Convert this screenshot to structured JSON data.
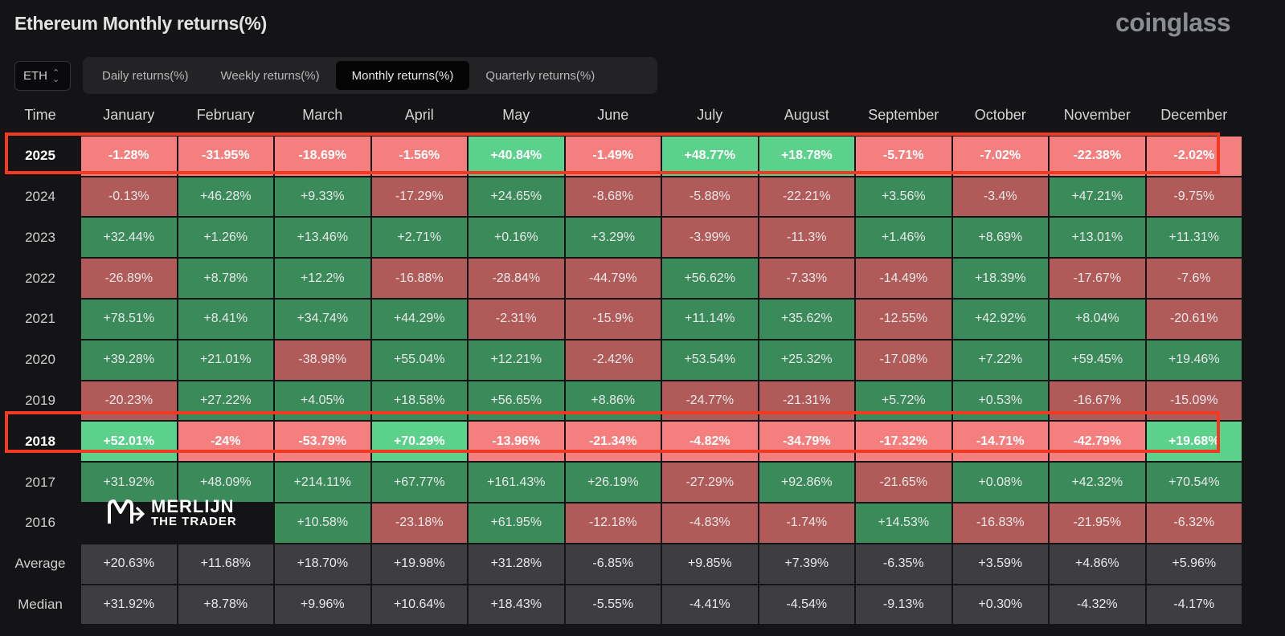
{
  "header": {
    "title": "Ethereum Monthly returns(%)",
    "brand": "coinglass"
  },
  "asset_select": {
    "value": "ETH",
    "icon": "chevron-updown-icon"
  },
  "tabs": [
    {
      "label": "Daily returns(%)",
      "active": false
    },
    {
      "label": "Weekly returns(%)",
      "active": false
    },
    {
      "label": "Monthly returns(%)",
      "active": true
    },
    {
      "label": "Quarterly returns(%)",
      "active": false
    }
  ],
  "table": {
    "time_header": "Time",
    "months": [
      "January",
      "February",
      "March",
      "April",
      "May",
      "June",
      "July",
      "August",
      "September",
      "October",
      "November",
      "December"
    ],
    "rows": [
      {
        "label": "2025",
        "highlight": true,
        "values": [
          "-1.28%",
          "-31.95%",
          "-18.69%",
          "-1.56%",
          "+40.84%",
          "-1.49%",
          "+48.77%",
          "+18.78%",
          "-5.71%",
          "-7.02%",
          "-22.38%",
          "-2.02%"
        ]
      },
      {
        "label": "2024",
        "highlight": false,
        "values": [
          "-0.13%",
          "+46.28%",
          "+9.33%",
          "-17.29%",
          "+24.65%",
          "-8.68%",
          "-5.88%",
          "-22.21%",
          "+3.56%",
          "-3.4%",
          "+47.21%",
          "-9.75%"
        ]
      },
      {
        "label": "2023",
        "highlight": false,
        "values": [
          "+32.44%",
          "+1.26%",
          "+13.46%",
          "+2.71%",
          "+0.16%",
          "+3.29%",
          "-3.99%",
          "-11.3%",
          "+1.46%",
          "+8.69%",
          "+13.01%",
          "+11.31%"
        ]
      },
      {
        "label": "2022",
        "highlight": false,
        "values": [
          "-26.89%",
          "+8.78%",
          "+12.2%",
          "-16.88%",
          "-28.84%",
          "-44.79%",
          "+56.62%",
          "-7.33%",
          "-14.49%",
          "+18.39%",
          "-17.67%",
          "-7.6%"
        ]
      },
      {
        "label": "2021",
        "highlight": false,
        "values": [
          "+78.51%",
          "+8.41%",
          "+34.74%",
          "+44.29%",
          "-2.31%",
          "-15.9%",
          "+11.14%",
          "+35.62%",
          "-12.55%",
          "+42.92%",
          "+8.04%",
          "-20.61%"
        ]
      },
      {
        "label": "2020",
        "highlight": false,
        "values": [
          "+39.28%",
          "+21.01%",
          "-38.98%",
          "+55.04%",
          "+12.21%",
          "-2.42%",
          "+53.54%",
          "+25.32%",
          "-17.08%",
          "+7.22%",
          "+59.45%",
          "+19.46%"
        ]
      },
      {
        "label": "2019",
        "highlight": false,
        "values": [
          "-20.23%",
          "+27.22%",
          "+4.05%",
          "+18.58%",
          "+56.65%",
          "+8.86%",
          "-24.77%",
          "-21.31%",
          "+5.72%",
          "+0.53%",
          "-16.67%",
          "-15.09%"
        ]
      },
      {
        "label": "2018",
        "highlight": true,
        "values": [
          "+52.01%",
          "-24%",
          "-53.79%",
          "+70.29%",
          "-13.96%",
          "-21.34%",
          "-4.82%",
          "-34.79%",
          "-17.32%",
          "-14.71%",
          "-42.79%",
          "+19.68%"
        ]
      },
      {
        "label": "2017",
        "highlight": false,
        "values": [
          "+31.92%",
          "+48.09%",
          "+214.11%",
          "+67.77%",
          "+161.43%",
          "+26.19%",
          "-27.29%",
          "+92.86%",
          "-21.65%",
          "+0.08%",
          "+42.32%",
          "+70.54%"
        ]
      },
      {
        "label": "2016",
        "highlight": false,
        "values": [
          "",
          "",
          "+10.58%",
          "-23.18%",
          "+61.95%",
          "-12.18%",
          "-4.83%",
          "-1.74%",
          "+14.53%",
          "-16.83%",
          "-21.95%",
          "-6.32%"
        ]
      },
      {
        "label": "Average",
        "stat": true,
        "values": [
          "+20.63%",
          "+11.68%",
          "+18.70%",
          "+19.98%",
          "+31.28%",
          "-6.85%",
          "+9.85%",
          "+7.39%",
          "-6.35%",
          "+3.59%",
          "+4.86%",
          "+5.96%"
        ]
      },
      {
        "label": "Median",
        "stat": true,
        "values": [
          "+31.92%",
          "+8.78%",
          "+9.96%",
          "+10.64%",
          "+18.43%",
          "-5.55%",
          "-4.41%",
          "-4.54%",
          "-9.13%",
          "+0.30%",
          "-4.32%",
          "-4.17%"
        ]
      }
    ]
  },
  "watermark": {
    "line1": "MERLIJN",
    "line2": "THE TRADER",
    "icon": "merlijn-logo-icon"
  },
  "colors": {
    "positive": "#3a8a5a",
    "negative": "#b15a5a",
    "positive_highlight": "#5bd18c",
    "negative_highlight": "#f57f7f",
    "neutral": "#3e3e42",
    "outline": "#f23a23"
  }
}
